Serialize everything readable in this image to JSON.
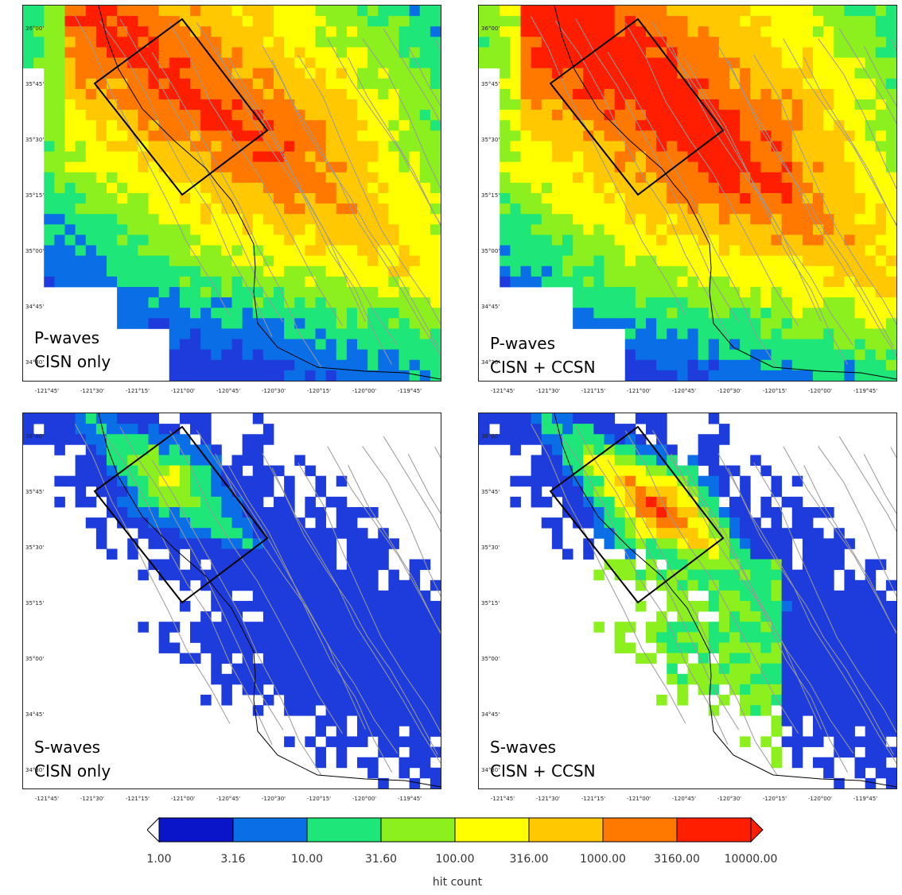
{
  "panels": [
    {
      "line1": "P-waves",
      "line2": "CISN only",
      "type": "P",
      "network": "cisn"
    },
    {
      "line1": "P-waves",
      "line2": "CISN + CCSN",
      "type": "P",
      "network": "both"
    },
    {
      "line1": "S-waves",
      "line2": "CISN only",
      "type": "S",
      "network": "cisn"
    },
    {
      "line1": "S-waves",
      "line2": "CISN + CCSN",
      "type": "S",
      "network": "both"
    }
  ],
  "x_ticks": [
    "-121°45'",
    "-121°30'",
    "-121°15'",
    "-121°00'",
    "-120°45'",
    "-120°30'",
    "-120°15'",
    "-120°00'",
    "-119°45'"
  ],
  "y_ticks": [
    "36°00'",
    "35°45'",
    "35°30'",
    "35°15'",
    "35°00'",
    "34°45'",
    "34°30'"
  ],
  "colorbar": {
    "title": "hit count",
    "ticks": [
      "1.00",
      "3.16",
      "10.00",
      "31.60",
      "100.00",
      "316.00",
      "1000.00",
      "3160.00",
      "10000.00"
    ],
    "colors": [
      "#0a14c8",
      "#0a6ee6",
      "#1ee678",
      "#8cf01e",
      "#ffff00",
      "#ffc800",
      "#ff7800",
      "#ff1e00",
      "#ff1e00"
    ]
  },
  "map_colors": {
    "blue": "#1e3cdc",
    "fault": "#999999",
    "coast": "#000000",
    "box": "#000000"
  }
}
